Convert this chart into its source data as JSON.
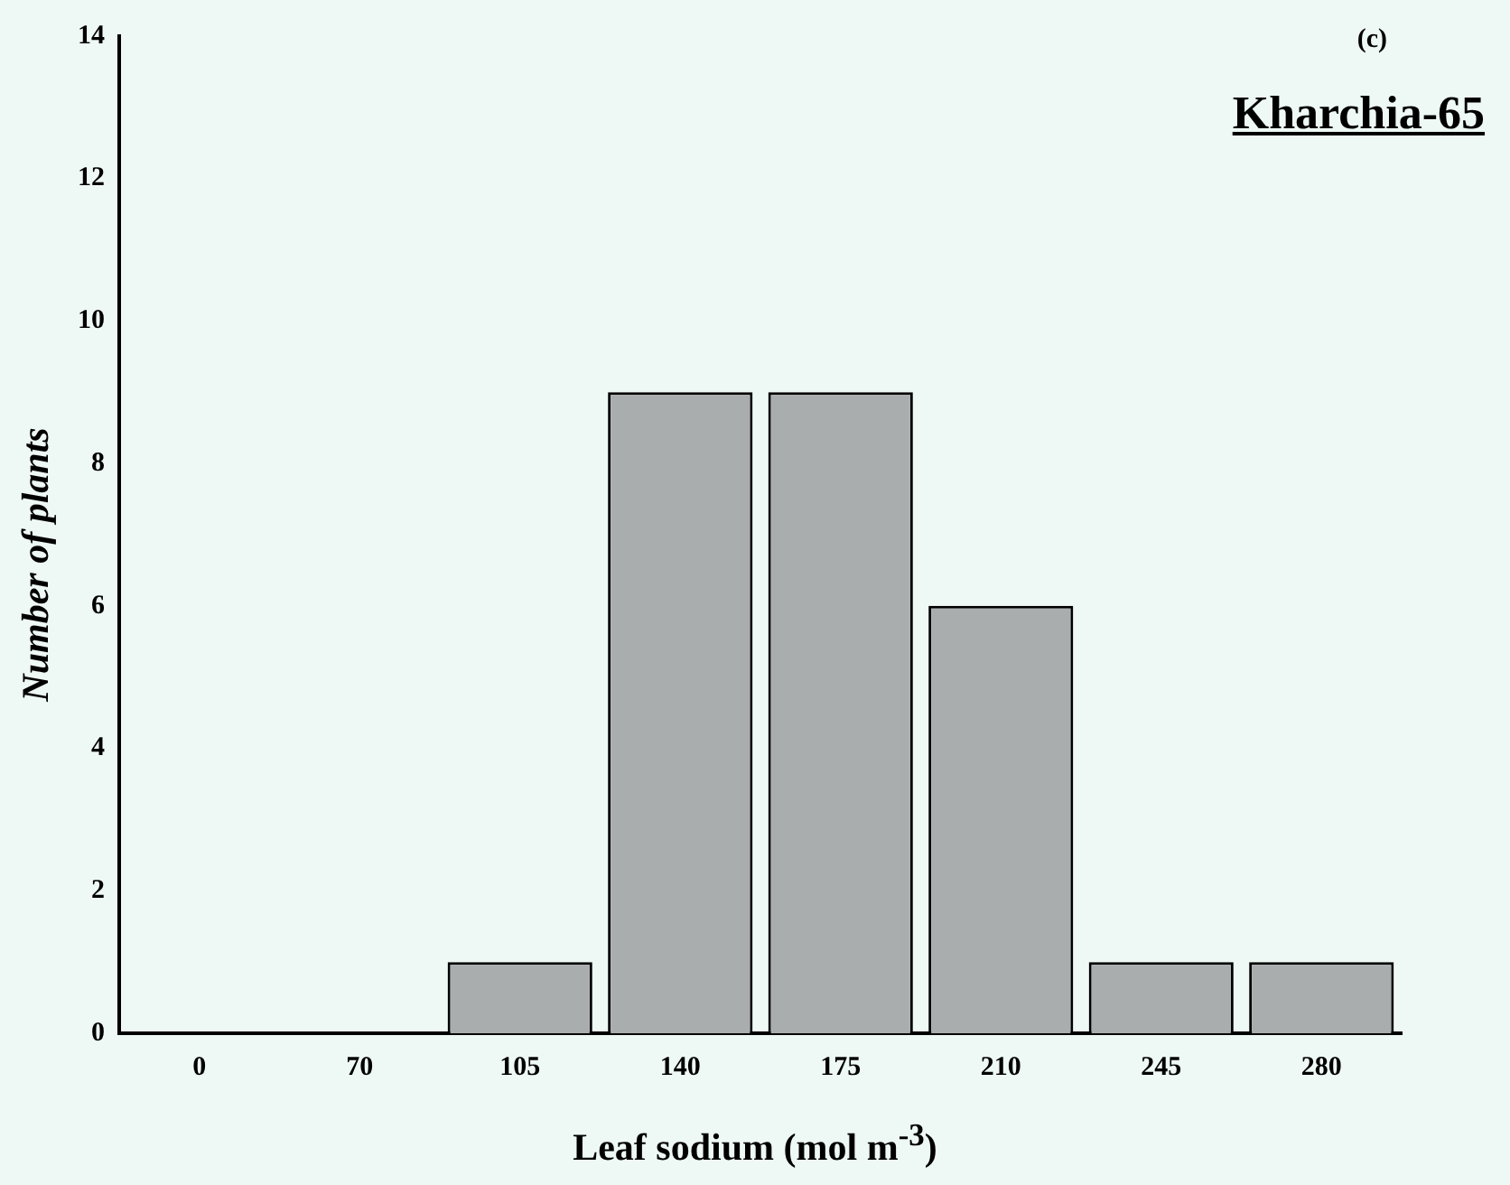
{
  "chart_data": {
    "type": "bar",
    "title": "Kharchia-65",
    "annotations": [
      "(c)"
    ],
    "xlabel": "Leaf sodium (mol m$^{-3}$)",
    "ylabel": "Number of plants",
    "categories": [
      "0",
      "70",
      "105",
      "140",
      "175",
      "210",
      "245",
      "280"
    ],
    "values": [
      0,
      0,
      1,
      9,
      9,
      6,
      1,
      1
    ],
    "color": "#a9adad",
    "ylim": [
      0,
      14
    ],
    "yticks": [
      0,
      2,
      4,
      6,
      8,
      10,
      12,
      14
    ],
    "grid": false,
    "legend": false
  }
}
